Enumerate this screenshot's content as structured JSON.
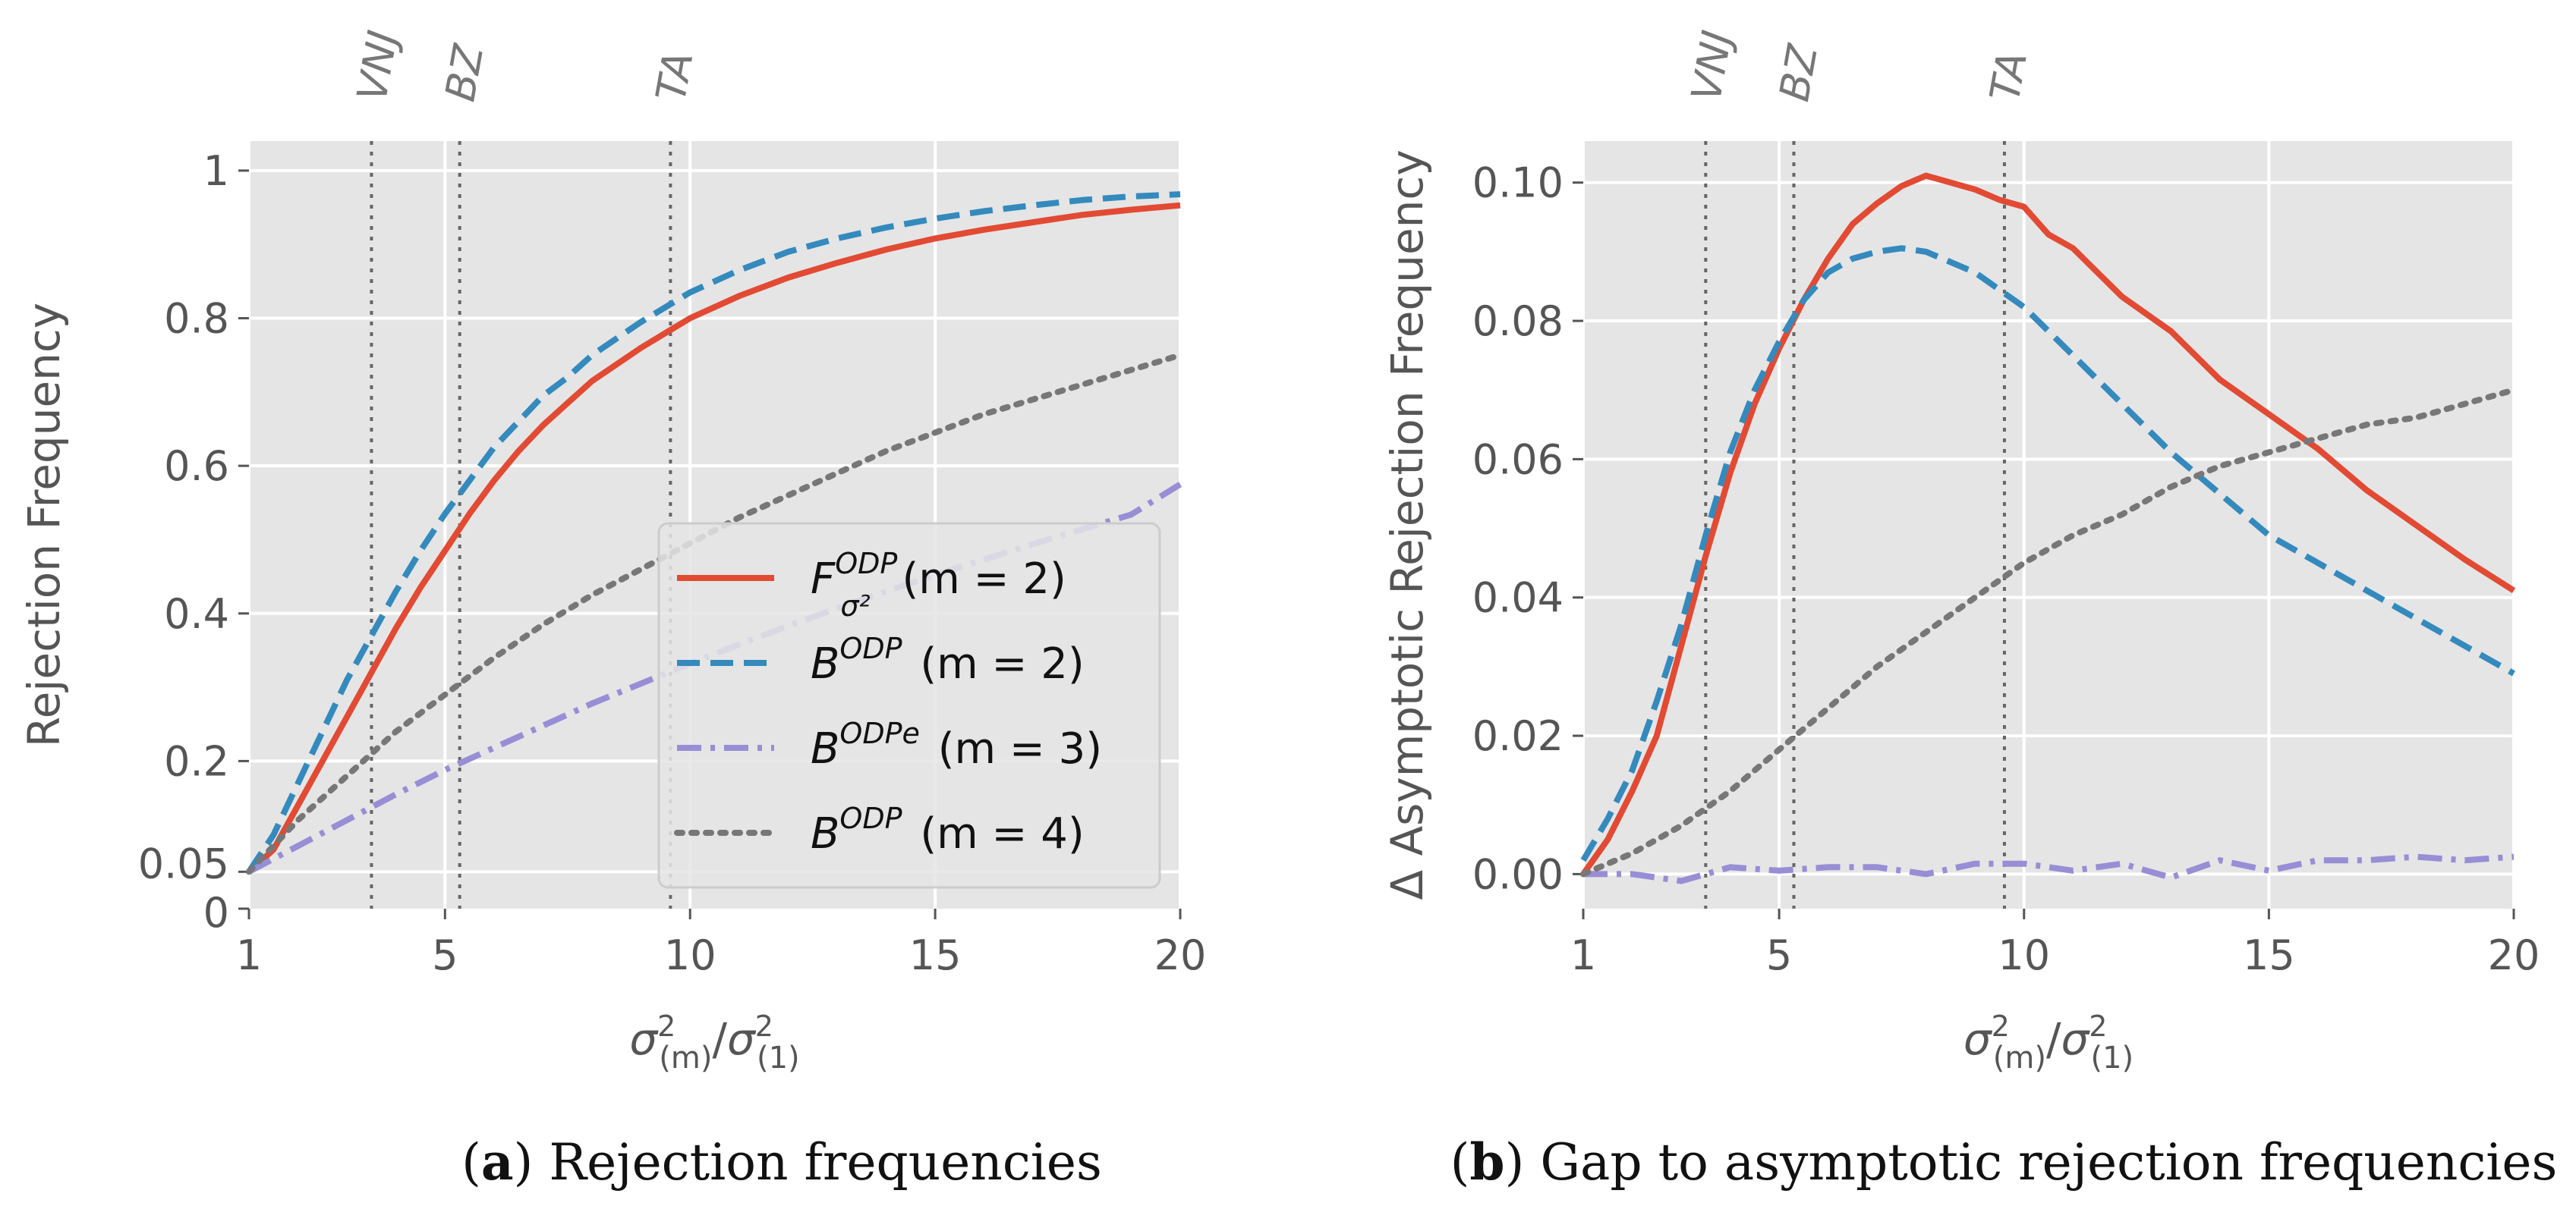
{
  "chart_data": [
    {
      "type": "line",
      "panel": "a",
      "caption_letter": "a",
      "caption_text": "Rejection frequencies",
      "xlabel": "σ²(m)/σ²(1)",
      "ylabel": "Rejection Frequency",
      "xlim": [
        1,
        20
      ],
      "ylim": [
        0,
        1.04
      ],
      "xticks": [
        1,
        5,
        10,
        15,
        20
      ],
      "xtick_labels": [
        "1",
        "5",
        "10",
        "15",
        "20"
      ],
      "yticks": [
        0,
        0.05,
        0.2,
        0.4,
        0.6,
        0.8,
        1
      ],
      "ytick_labels": [
        "0",
        "0.05",
        "0.2",
        "0.4",
        "0.6",
        "0.8",
        "1"
      ],
      "ygrid": [
        0.05,
        0.2,
        0.4,
        0.6,
        0.8,
        1
      ],
      "vlines": [
        {
          "x": 3.5,
          "label": "VNJ"
        },
        {
          "x": 5.3,
          "label": "BZ"
        },
        {
          "x": 9.6,
          "label": "TA"
        }
      ],
      "legend": {
        "placement": "lower-right"
      },
      "series": [
        {
          "name": "F^ODP_σ² (m = 2)",
          "base": "F",
          "sup": "ODP",
          "sub": "σ²",
          "suffix": " (m = 2)",
          "color": "#e24a33",
          "dash": "solid",
          "x": [
            1,
            1.5,
            2,
            2.5,
            3,
            3.5,
            4,
            4.5,
            5,
            5.5,
            6,
            6.5,
            7,
            7.5,
            8,
            9,
            10,
            11,
            12,
            13,
            14,
            15,
            16,
            17,
            18,
            19,
            20
          ],
          "y": [
            0.05,
            0.08,
            0.14,
            0.2,
            0.26,
            0.32,
            0.38,
            0.435,
            0.485,
            0.535,
            0.58,
            0.62,
            0.655,
            0.685,
            0.715,
            0.76,
            0.8,
            0.83,
            0.855,
            0.875,
            0.893,
            0.908,
            0.92,
            0.93,
            0.94,
            0.947,
            0.953
          ]
        },
        {
          "name": "B^ODP (m = 2)",
          "base": "B",
          "sup": "ODP",
          "sub": "",
          "suffix": " (m = 2)",
          "color": "#348abd",
          "dash": "dashed",
          "x": [
            1,
            1.5,
            2,
            2.5,
            3,
            3.5,
            4,
            4.5,
            5,
            5.5,
            6,
            6.5,
            7,
            7.5,
            8,
            9,
            10,
            11,
            12,
            13,
            14,
            15,
            16,
            17,
            18,
            19,
            20
          ],
          "y": [
            0.05,
            0.1,
            0.17,
            0.24,
            0.31,
            0.37,
            0.43,
            0.485,
            0.535,
            0.58,
            0.625,
            0.66,
            0.695,
            0.72,
            0.75,
            0.795,
            0.835,
            0.865,
            0.89,
            0.908,
            0.923,
            0.935,
            0.945,
            0.953,
            0.96,
            0.965,
            0.968
          ]
        },
        {
          "name": "B^ODPe (m = 3)",
          "base": "B",
          "sup": "ODPe",
          "sub": "",
          "suffix": " (m = 3)",
          "color": "#988ed5",
          "dash": "dashdot",
          "x": [
            1,
            2,
            3,
            4,
            5,
            6,
            7,
            8,
            9,
            10,
            11,
            12,
            13,
            14,
            15,
            16,
            17,
            18,
            19,
            20
          ],
          "y": [
            0.05,
            0.085,
            0.12,
            0.155,
            0.188,
            0.218,
            0.248,
            0.278,
            0.305,
            0.332,
            0.358,
            0.383,
            0.407,
            0.43,
            0.452,
            0.473,
            0.494,
            0.514,
            0.534,
            0.575
          ]
        },
        {
          "name": "B^ODP (m = 4)",
          "base": "B",
          "sup": "ODP",
          "sub": "",
          "suffix": " (m = 4)",
          "color": "#777777",
          "dash": "dotted",
          "x": [
            1,
            2,
            3,
            4,
            5,
            6,
            7,
            8,
            9,
            10,
            11,
            12,
            13,
            14,
            15,
            16,
            17,
            18,
            19,
            20
          ],
          "y": [
            0.05,
            0.12,
            0.18,
            0.24,
            0.29,
            0.34,
            0.385,
            0.425,
            0.46,
            0.495,
            0.53,
            0.56,
            0.59,
            0.62,
            0.645,
            0.67,
            0.69,
            0.71,
            0.73,
            0.75
          ]
        }
      ]
    },
    {
      "type": "line",
      "panel": "b",
      "caption_letter": "b",
      "caption_text": "Gap to asymptotic rejection frequencies",
      "xlabel": "σ²(m)/σ²(1)",
      "ylabel": "Δ Asymptotic Rejection Frequency",
      "xlim": [
        1,
        20
      ],
      "ylim": [
        -0.005,
        0.106
      ],
      "xticks": [
        1,
        5,
        10,
        15,
        20
      ],
      "xtick_labels": [
        "1",
        "5",
        "10",
        "15",
        "20"
      ],
      "yticks": [
        0,
        0.02,
        0.04,
        0.06,
        0.08,
        0.1
      ],
      "ytick_labels": [
        "0.00",
        "0.02",
        "0.04",
        "0.06",
        "0.08",
        "0.10"
      ],
      "ygrid": [
        0,
        0.02,
        0.04,
        0.06,
        0.08,
        0.1
      ],
      "vlines": [
        {
          "x": 3.5,
          "label": "VNJ"
        },
        {
          "x": 5.3,
          "label": "BZ"
        },
        {
          "x": 9.6,
          "label": "TA"
        }
      ],
      "series": [
        {
          "name": "F^ODP_σ² (m = 2)",
          "color": "#e24a33",
          "dash": "solid",
          "x": [
            1,
            1.5,
            2,
            2.5,
            3,
            3.5,
            4,
            4.5,
            5,
            5.5,
            6,
            6.5,
            7,
            7.5,
            8,
            8.5,
            9,
            9.5,
            10,
            10.5,
            11,
            11.5,
            12,
            13,
            14,
            15,
            16,
            17,
            18,
            19,
            20
          ],
          "y": [
            0,
            0.005,
            0.012,
            0.02,
            0.033,
            0.046,
            0.058,
            0.068,
            0.076,
            0.083,
            0.089,
            0.094,
            0.097,
            0.0995,
            0.101,
            0.1,
            0.099,
            0.0975,
            0.0965,
            0.0925,
            0.0905,
            0.087,
            0.0835,
            0.0785,
            0.0715,
            0.0665,
            0.0615,
            0.0555,
            0.0505,
            0.0455,
            0.041
          ]
        },
        {
          "name": "B^ODP (m = 2)",
          "color": "#348abd",
          "dash": "dashed",
          "x": [
            1,
            1.5,
            2,
            2.5,
            3,
            3.5,
            4,
            4.5,
            5,
            5.5,
            6,
            6.5,
            7,
            7.5,
            8,
            9,
            10,
            11,
            12,
            13,
            14,
            15,
            16,
            17,
            18,
            19,
            20
          ],
          "y": [
            0.002,
            0.008,
            0.015,
            0.025,
            0.036,
            0.049,
            0.061,
            0.07,
            0.077,
            0.083,
            0.087,
            0.089,
            0.09,
            0.0905,
            0.09,
            0.087,
            0.082,
            0.075,
            0.068,
            0.061,
            0.055,
            0.049,
            0.045,
            0.041,
            0.037,
            0.033,
            0.029
          ]
        },
        {
          "name": "B^ODPe (m = 3)",
          "color": "#988ed5",
          "dash": "dashdot",
          "x": [
            1,
            2,
            3,
            4,
            5,
            6,
            7,
            8,
            9,
            10,
            11,
            12,
            13,
            14,
            15,
            16,
            17,
            18,
            19,
            20
          ],
          "y": [
            0.0,
            0.0,
            -0.001,
            0.001,
            0.0005,
            0.001,
            0.001,
            0.0,
            0.0015,
            0.0015,
            0.0005,
            0.0015,
            -0.0005,
            0.002,
            0.0005,
            0.002,
            0.002,
            0.0025,
            0.002,
            0.0025
          ]
        },
        {
          "name": "B^ODP (m = 4)",
          "color": "#777777",
          "dash": "dotted",
          "x": [
            1,
            2,
            3,
            4,
            5,
            6,
            7,
            8,
            9,
            10,
            11,
            12,
            13,
            14,
            15,
            16,
            17,
            18,
            19,
            20
          ],
          "y": [
            0.0,
            0.003,
            0.007,
            0.012,
            0.018,
            0.024,
            0.03,
            0.035,
            0.04,
            0.045,
            0.049,
            0.052,
            0.056,
            0.059,
            0.061,
            0.063,
            0.065,
            0.066,
            0.068,
            0.07
          ]
        }
      ]
    }
  ]
}
